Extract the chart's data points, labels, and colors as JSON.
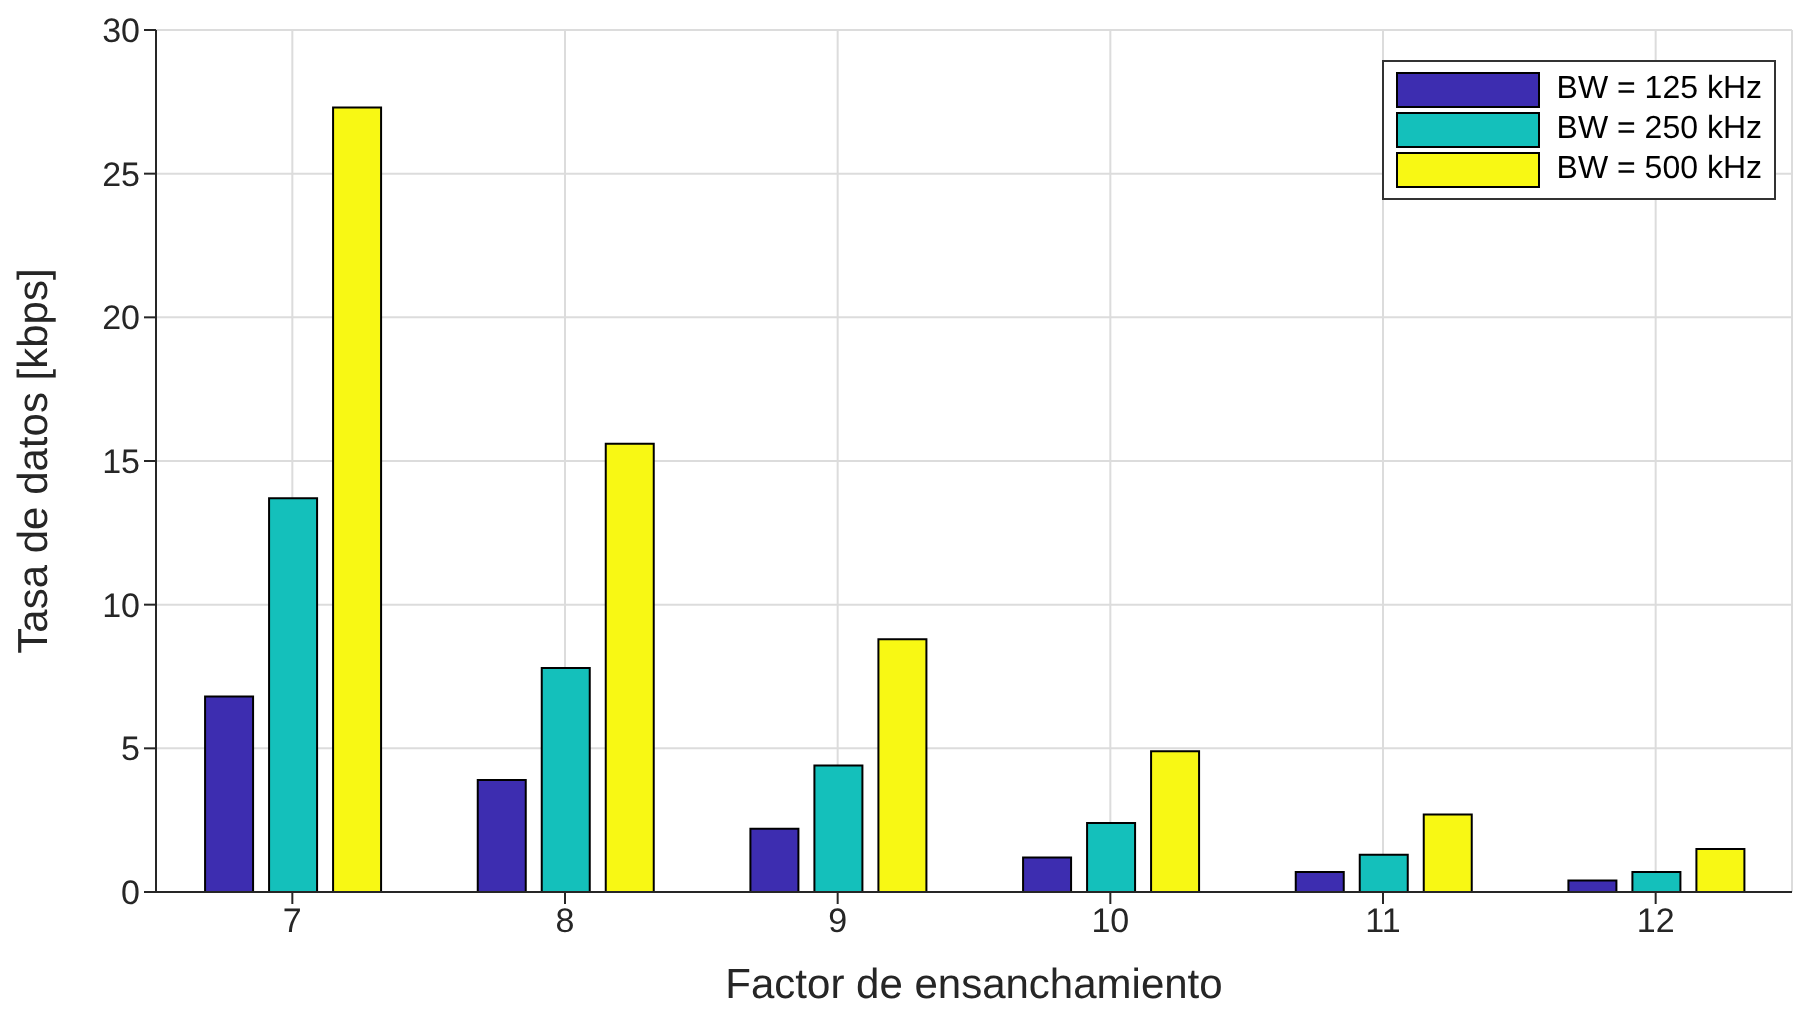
{
  "chart_data": {
    "type": "bar",
    "xlabel": "Factor de ensanchamiento",
    "ylabel": "Tasa de datos [kbps]",
    "categories": [
      "7",
      "8",
      "9",
      "10",
      "11",
      "12"
    ],
    "series": [
      {
        "name": "BW = 125 kHz",
        "color": "#3d2db0",
        "values": [
          6.8,
          3.9,
          2.2,
          1.2,
          0.7,
          0.4
        ]
      },
      {
        "name": "BW = 250 kHz",
        "color": "#14c0bb",
        "values": [
          13.7,
          7.8,
          4.4,
          2.4,
          1.3,
          0.7
        ]
      },
      {
        "name": "BW = 500 kHz",
        "color": "#f8f814",
        "values": [
          27.3,
          15.6,
          8.8,
          4.9,
          2.7,
          1.5
        ]
      }
    ],
    "ylim": [
      0,
      30
    ],
    "yticks": [
      0,
      5,
      10,
      15,
      20,
      25,
      30
    ],
    "grid": true,
    "legend": "top right"
  }
}
